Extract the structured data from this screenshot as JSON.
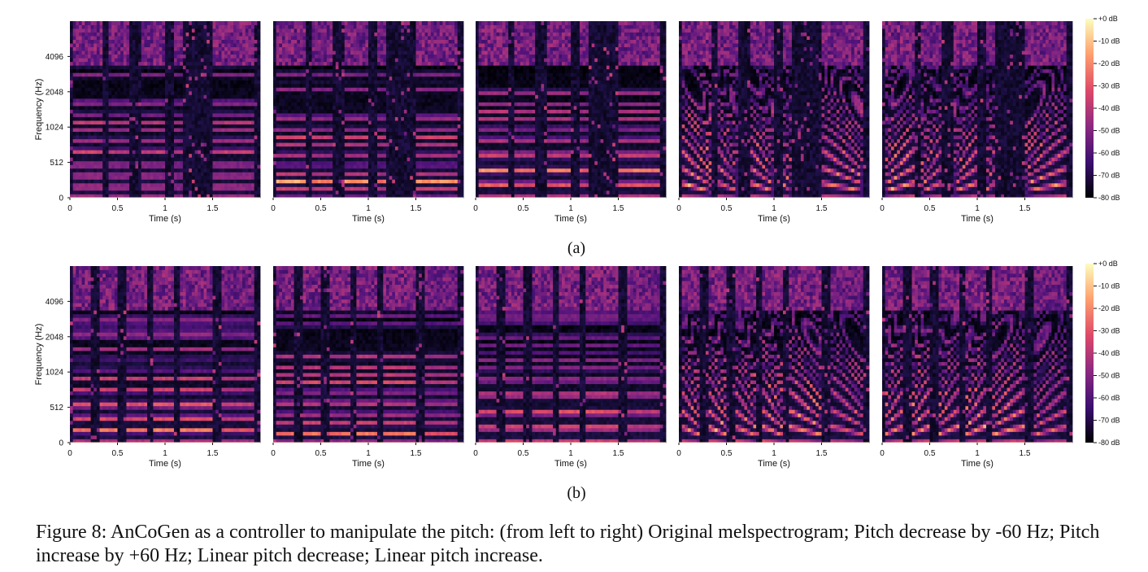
{
  "figure": {
    "number": "Figure 8:",
    "caption_text": "AnCoGen as a controller to manipulate the pitch: (from left to right) Original melspectrogram; Pitch decrease by -60 Hz; Pitch increase by +60 Hz; Linear pitch decrease; Linear pitch increase.",
    "caption": "Figure 8: AnCoGen as a controller to manipulate the pitch: (from left to right) Original melspectrogram; Pitch decrease by -60 Hz; Pitch increase by +60 Hz; Linear pitch decrease; Linear pitch increase."
  },
  "chart_data": [
    {
      "type": "heatmap",
      "row_label": "(a)",
      "ylabel": "Frequency (Hz)",
      "xlabel": "Time (s)",
      "panels": 5,
      "x_ticks": [
        "0",
        "0.5",
        "1",
        "1.5"
      ],
      "x_tick_values": [
        0,
        0.5,
        1,
        1.5
      ],
      "xlim": [
        0,
        2.0
      ],
      "y_ticks": [
        "0",
        "512",
        "1024",
        "2048",
        "4096"
      ],
      "y_tick_values": [
        0,
        512,
        1024,
        2048,
        4096
      ],
      "colorbar_ticks": [
        "+0 dB",
        "-10 dB",
        "-20 dB",
        "-30 dB",
        "-40 dB",
        "-50 dB",
        "-60 dB",
        "-70 dB",
        "-80 dB"
      ],
      "colorbar_range_db": [
        -80,
        0
      ],
      "colormap": [
        "#000004",
        "#3b0f70",
        "#8c2981",
        "#de4968",
        "#fe9f6d",
        "#fcfdbf"
      ]
    },
    {
      "type": "heatmap",
      "row_label": "(b)",
      "ylabel": "Frequency (Hz)",
      "xlabel": "Time (s)",
      "panels": 5,
      "x_ticks": [
        "0",
        "0.5",
        "1",
        "1.5"
      ],
      "x_tick_values": [
        0,
        0.5,
        1,
        1.5
      ],
      "xlim": [
        0,
        2.0
      ],
      "y_ticks": [
        "0",
        "512",
        "1024",
        "2048",
        "4096"
      ],
      "y_tick_values": [
        0,
        512,
        1024,
        2048,
        4096
      ],
      "colorbar_ticks": [
        "+0 dB",
        "-10 dB",
        "-20 dB",
        "-30 dB",
        "-40 dB",
        "-50 dB",
        "-60 dB",
        "-70 dB",
        "-80 dB"
      ],
      "colorbar_range_db": [
        -80,
        0
      ],
      "colormap": [
        "#000004",
        "#3b0f70",
        "#8c2981",
        "#de4968",
        "#fe9f6d",
        "#fcfdbf"
      ]
    }
  ]
}
